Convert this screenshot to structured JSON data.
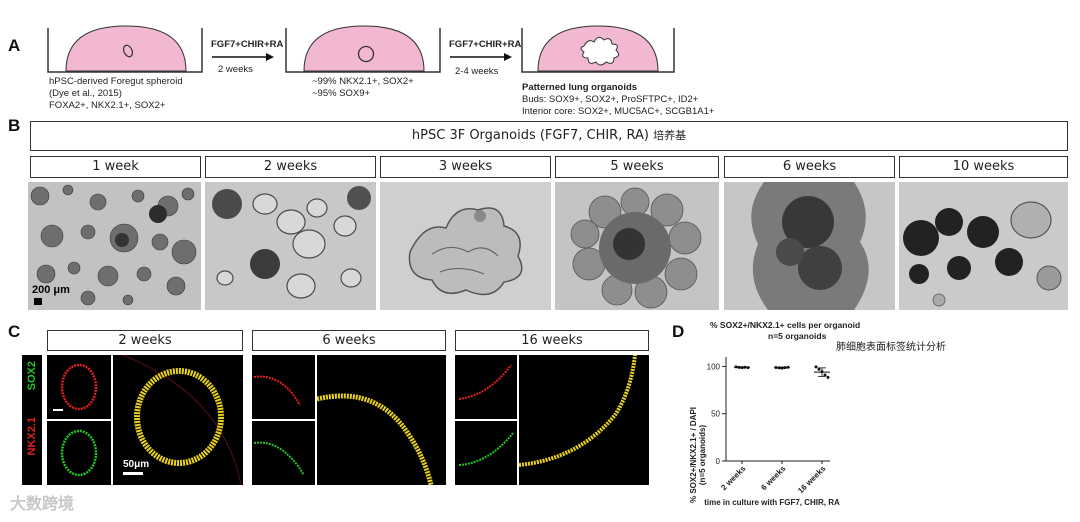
{
  "panels": {
    "a": "A",
    "b": "B",
    "c": "C",
    "d": "D"
  },
  "panelA": {
    "arrow1_label": "FGF7+CHIR+RA",
    "arrow1_sub": "2 weeks",
    "arrow2_label": "FGF7+CHIR+RA",
    "arrow2_sub": "2-4 weeks",
    "dish1_lines": [
      "hPSC-derived Foregut spheroid",
      "(Dye et al., 2015)",
      "FOXA2+, NKX2.1+, SOX2+"
    ],
    "dish2_lines": [
      "~99% NKX2.1+, SOX2+",
      "~95% SOX9+"
    ],
    "dish3_title": "Patterned lung organoids",
    "dish3_lines": [
      "Buds: SOX9+, SOX2+, ProSFTPC+, ID2+",
      "Interior core: SOX2+, MUC5AC+, SCGB1A1+"
    ]
  },
  "panelB": {
    "title": "hPSC 3F Organoids (FGF7, CHIR, RA)",
    "title_cn": "培养基",
    "timepoints": [
      "1 week",
      "2 weeks",
      "3 weeks",
      "5 weeks",
      "6 weeks",
      "10 weeks"
    ],
    "scale_bar": "200 μm"
  },
  "panelC": {
    "timepoints": [
      "2 weeks",
      "6 weeks",
      "16 weeks"
    ],
    "marker_red": "NKX2.1",
    "marker_green": "SOX2",
    "scale_bar": "50μm",
    "colors": {
      "red": "#e0201b",
      "green": "#22c52a",
      "merge": "#e8d21e"
    }
  },
  "chart_data": {
    "type": "scatter",
    "title": "% SOX2+/NKX2.1+ cells per organoid",
    "subtitle": "n=5 organoids",
    "annotation_cn": "肺细胞表面标签统计分析",
    "ylabel_lines": [
      "% SOX2+/NKX2.1+ / DAPI",
      "(n=5 organoids)"
    ],
    "xlabel": "time in culture with FGF7, CHIR, RA",
    "categories": [
      "2 weeks",
      "6 weeks",
      "16 weeks"
    ],
    "points": [
      [
        99.5,
        99.0,
        98.7,
        99.2,
        98.8
      ],
      [
        98.9,
        98.5,
        98.2,
        98.8,
        99.1
      ],
      [
        99.5,
        97.0,
        94.5,
        91.0,
        88.5
      ]
    ],
    "means": [
      99.0,
      98.7,
      94.0
    ],
    "errors": [
      0.6,
      0.7,
      4.5
    ],
    "yticks": [
      0,
      50,
      100
    ],
    "ylim": [
      0,
      110
    ]
  },
  "watermark": "大数跨境"
}
